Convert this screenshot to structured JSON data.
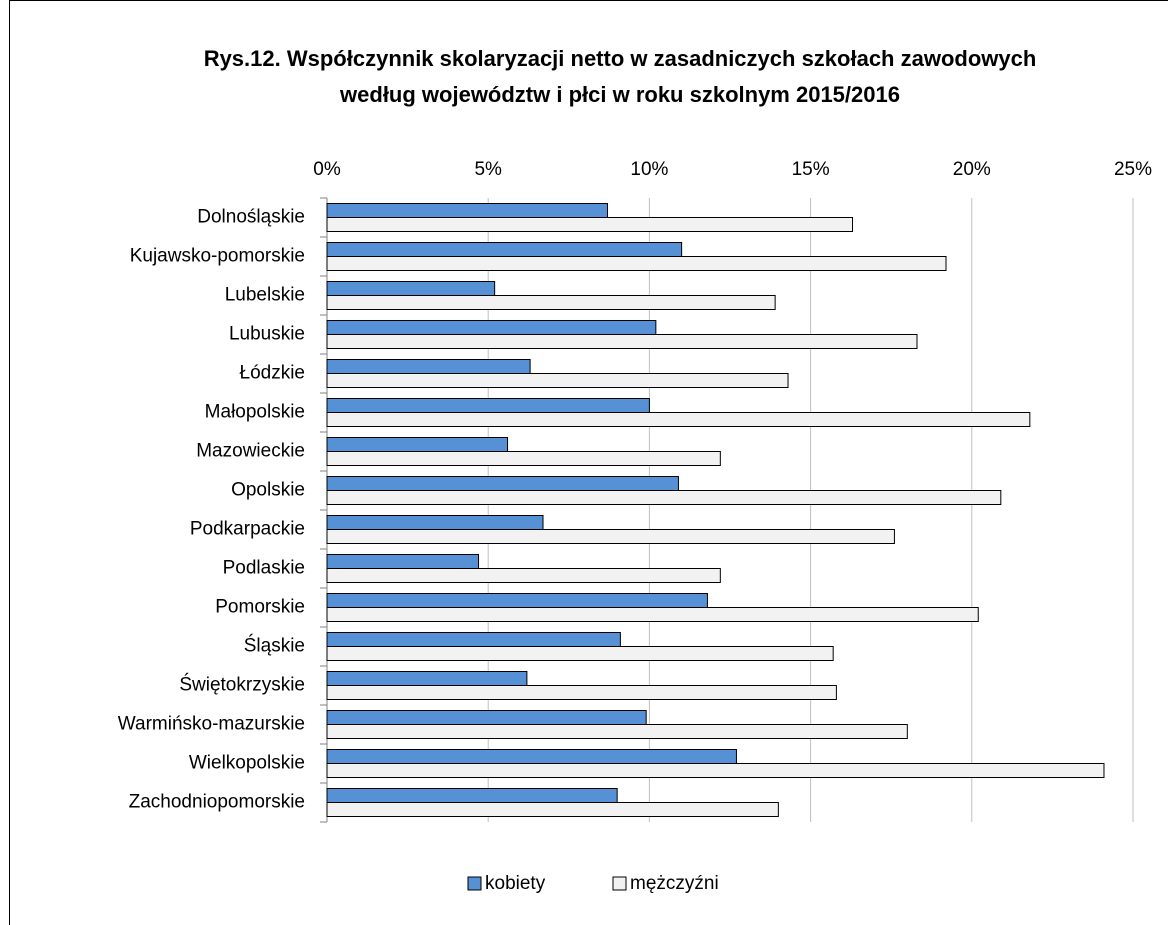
{
  "chart_data": {
    "type": "hbar",
    "title": [
      "Rys.12. Współczynnik skolaryzacji netto w zasadniczych szkołach zawodowych",
      "według województw i płci w roku szkolnym 2015/2016"
    ],
    "categories": [
      "Dolnośląskie",
      "Kujawsko-pomorskie",
      "Lubelskie",
      "Lubuskie",
      "Łódzkie",
      "Małopolskie",
      "Mazowieckie",
      "Opolskie",
      "Podkarpackie",
      "Podlaskie",
      "Pomorskie",
      "Śląskie",
      "Świętokrzyskie",
      "Warmińsko-mazurskie",
      "Wielkopolskie",
      "Zachodniopomorskie"
    ],
    "series": [
      {
        "name": "kobiety",
        "color": "#5591d4",
        "values": [
          8.7,
          11.0,
          5.2,
          10.2,
          6.3,
          10.0,
          5.6,
          10.9,
          6.7,
          4.7,
          11.8,
          9.1,
          6.2,
          9.9,
          12.7,
          9.0
        ]
      },
      {
        "name": "mężczyźni",
        "color": "#f2f2f2",
        "values": [
          16.3,
          19.2,
          13.9,
          18.3,
          14.3,
          21.8,
          12.2,
          20.9,
          17.6,
          12.2,
          20.2,
          15.7,
          15.8,
          18.0,
          24.1,
          14.0
        ]
      }
    ],
    "xlim": [
      0,
      25
    ],
    "xticks": [
      {
        "value": 0,
        "label": "0%"
      },
      {
        "value": 5,
        "label": "5%"
      },
      {
        "value": 10,
        "label": "10%"
      },
      {
        "value": 15,
        "label": "15%"
      },
      {
        "value": 20,
        "label": "20%"
      },
      {
        "value": 25,
        "label": "25%"
      }
    ],
    "grid": true,
    "legend": "bottom"
  }
}
